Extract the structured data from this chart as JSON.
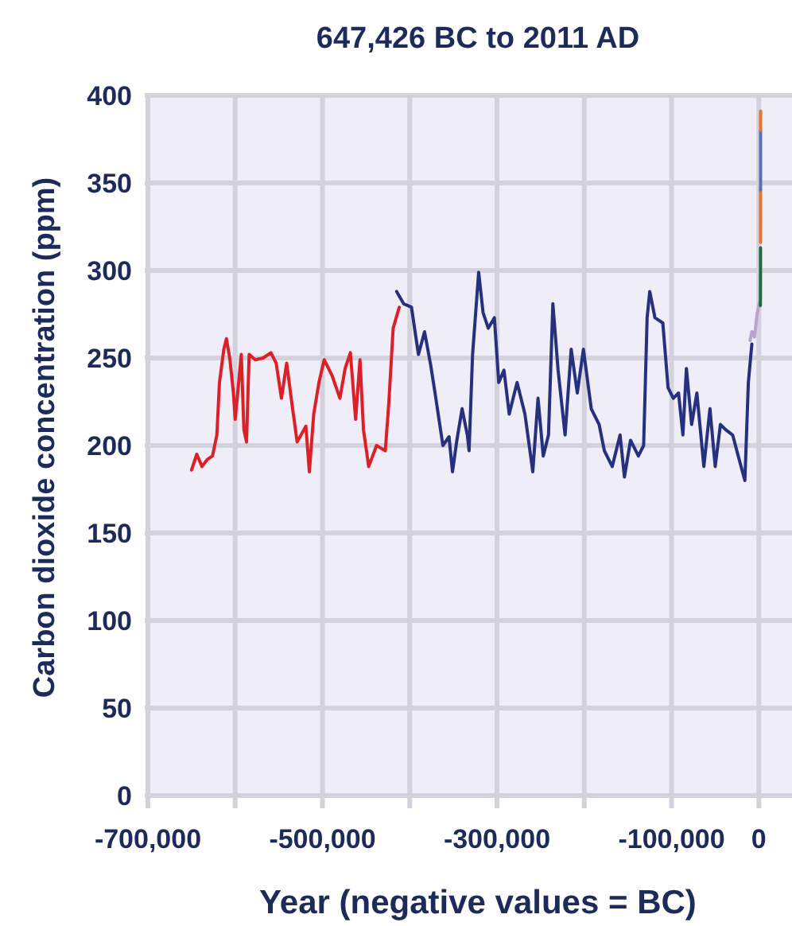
{
  "chart_data": {
    "type": "line",
    "title": "647,426 BC to 2011 AD",
    "xlabel": "Year (negative values = BC)",
    "ylabel": "Carbon dioxide concentration (ppm)",
    "xlim": [
      -700000,
      38000
    ],
    "ylim": [
      0,
      400
    ],
    "xticks": [
      {
        "value": -700000,
        "label": "-700,000"
      },
      {
        "value": -600000,
        "label": null
      },
      {
        "value": -500000,
        "label": "-500,000"
      },
      {
        "value": -400000,
        "label": null
      },
      {
        "value": -300000,
        "label": "-300,000"
      },
      {
        "value": -200000,
        "label": null
      },
      {
        "value": -100000,
        "label": "-100,000"
      },
      0
    ],
    "yticks": [
      0,
      50,
      100,
      150,
      200,
      250,
      300,
      350,
      400
    ],
    "grid": true,
    "series": [
      {
        "color": "#dd2027",
        "x": [
          -650000,
          -644000,
          -638000,
          -632000,
          -626000,
          -621000,
          -618000,
          -613000,
          -610000,
          -606000,
          -602000,
          -600000,
          -596000,
          -593000,
          -590000,
          -587000,
          -584000,
          -577000,
          -568000,
          -559000,
          -553000,
          -547000,
          -541000,
          -535000,
          -529000,
          -519000,
          -515000,
          -510000,
          -504000,
          -498000,
          -489000,
          -480000,
          -474000,
          -468000,
          -462000,
          -457000,
          -453000,
          -447000,
          -438000,
          -428000,
          -424000,
          -419000,
          -412000
        ],
        "values": [
          186,
          195,
          188,
          192,
          194,
          206,
          236,
          255,
          261,
          249,
          230,
          215,
          236,
          252,
          209,
          202,
          252,
          249,
          250,
          253,
          247,
          227,
          247,
          224,
          202,
          211,
          185,
          218,
          236,
          249,
          240,
          227,
          244,
          253,
          215,
          249,
          209,
          188,
          200,
          197,
          224,
          267,
          279
        ]
      },
      {
        "color": "#27307e",
        "x": [
          -415000,
          -407000,
          -398000,
          -390000,
          -383000,
          -376000,
          -371000,
          -362000,
          -355000,
          -351000,
          -346000,
          -340000,
          -334000,
          -332000,
          -328000,
          -321000,
          -316000,
          -310000,
          -303000,
          -298000,
          -292000,
          -286000,
          -277000,
          -268000,
          -259000,
          -253000,
          -247000,
          -241000,
          -236000,
          -230000,
          -222000,
          -215000,
          -208000,
          -201000,
          -192000,
          -183000,
          -177000,
          -168000,
          -159000,
          -154000,
          -147000,
          -138000,
          -132000,
          -128000,
          -125000,
          -119000,
          -110000,
          -104000,
          -98000,
          -92000,
          -87000,
          -83000,
          -77000,
          -71000,
          -63000,
          -56000,
          -50000,
          -44000,
          -38000,
          -30000,
          -22000,
          -16000,
          -12000,
          -8000
        ],
        "values": [
          288,
          281,
          279,
          252,
          265,
          246,
          230,
          200,
          205,
          185,
          203,
          221,
          206,
          197,
          252,
          299,
          276,
          267,
          273,
          236,
          243,
          218,
          236,
          218,
          185,
          227,
          194,
          206,
          281,
          243,
          206,
          255,
          230,
          255,
          221,
          212,
          197,
          188,
          206,
          182,
          203,
          194,
          200,
          273,
          288,
          273,
          270,
          233,
          227,
          230,
          206,
          244,
          212,
          230,
          188,
          221,
          188,
          212,
          209,
          206,
          191,
          180,
          236,
          258
        ]
      },
      {
        "color": "#b9a3d0",
        "x": [
          -10000,
          -8000,
          -5000,
          -2000,
          0,
          1000
        ],
        "values": [
          260,
          265,
          262,
          275,
          280,
          282
        ]
      },
      {
        "color": "#1e6b3a",
        "x": [
          1750,
          1850,
          1958
        ],
        "values": [
          280,
          285,
          313
        ]
      },
      {
        "color": "#e8742c",
        "x": [
          1958,
          1985
        ],
        "values": [
          316,
          346
        ]
      },
      {
        "color": "#5570b5",
        "x": [
          1985,
          2005
        ],
        "values": [
          346,
          380
        ]
      },
      {
        "color": "#e8742c",
        "x": [
          2005,
          2011
        ],
        "values": [
          380,
          391
        ]
      }
    ]
  }
}
